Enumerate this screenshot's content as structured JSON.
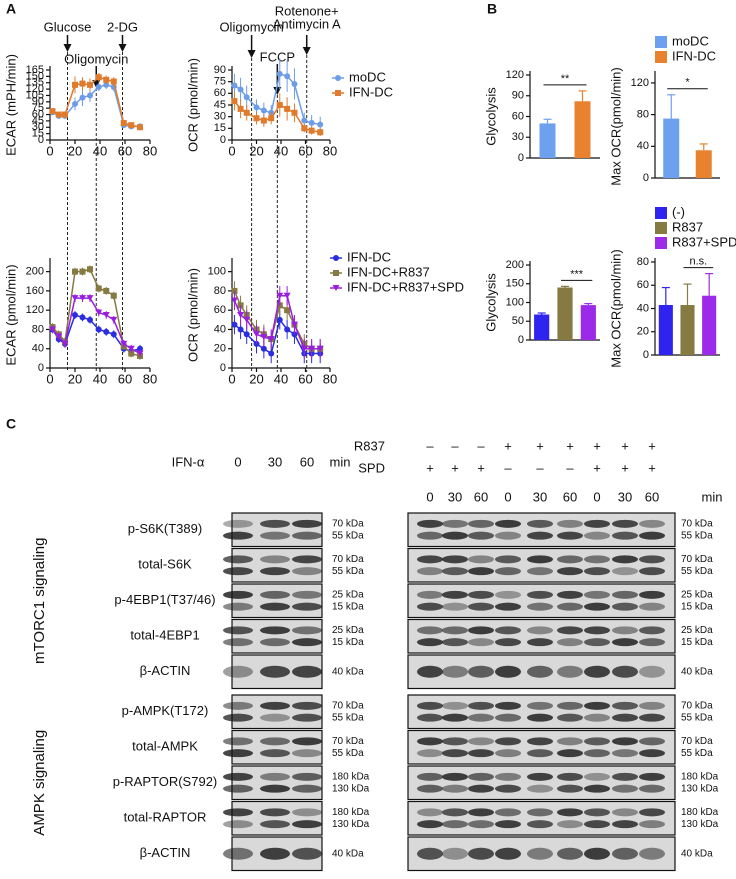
{
  "panel_labels": [
    "A",
    "B",
    "C"
  ],
  "chart_data": [
    {
      "type": "line",
      "ylabel": "ECAR (mPH/min)",
      "xlim": [
        0,
        80
      ],
      "xticks": [
        0,
        20,
        40,
        60,
        80
      ],
      "ylim": [
        0,
        165
      ],
      "yticks": [
        0,
        15,
        30,
        45,
        60,
        75,
        90,
        105,
        120,
        135,
        150,
        165
      ],
      "x": [
        2,
        7,
        12,
        20,
        26,
        32,
        39,
        45,
        51,
        59,
        65,
        72
      ],
      "events": [
        {
          "label": [
            "Glucose"
          ],
          "x": 14
        },
        {
          "label": [
            "Oligomycin"
          ],
          "x": 37
        },
        {
          "label": [
            "2-DG"
          ],
          "x": 58
        }
      ],
      "series": [
        {
          "name": "moDC",
          "color": "#6e9de8",
          "marker": "circle",
          "values": [
            65,
            57,
            57,
            85,
            100,
            105,
            125,
            130,
            125,
            35,
            32,
            32
          ],
          "errors": [
            5,
            5,
            5,
            15,
            20,
            15,
            10,
            10,
            10,
            5,
            5,
            5
          ]
        },
        {
          "name": "IFN-DC",
          "color": "#e07a2c",
          "marker": "square",
          "values": [
            68,
            60,
            60,
            130,
            133,
            130,
            148,
            142,
            138,
            40,
            35,
            30
          ],
          "errors": [
            5,
            5,
            5,
            20,
            15,
            15,
            10,
            10,
            10,
            5,
            5,
            5
          ]
        }
      ]
    },
    {
      "type": "line",
      "ylabel": "OCR (pmol/min)",
      "xlim": [
        0,
        80
      ],
      "xticks": [
        0,
        20,
        40,
        60,
        80
      ],
      "ylim": [
        0,
        90
      ],
      "yticks": [
        0,
        15,
        30,
        45,
        60,
        75,
        90
      ],
      "legend": "upper right",
      "x": [
        2,
        7,
        12,
        20,
        26,
        32,
        39,
        45,
        51,
        59,
        65,
        72
      ],
      "events": [
        {
          "label": [
            "Oligomycin"
          ],
          "x": 16
        },
        {
          "label": [
            "FCCP"
          ],
          "x": 37
        },
        {
          "label": [
            "Rotenone+",
            "Antimycin A"
          ],
          "x": 61
        }
      ],
      "series": [
        {
          "name": "moDC",
          "color": "#6e9de8",
          "marker": "circle",
          "values": [
            70,
            65,
            55,
            42,
            38,
            35,
            85,
            82,
            72,
            25,
            22,
            20
          ],
          "errors": [
            15,
            15,
            15,
            10,
            10,
            10,
            20,
            20,
            20,
            10,
            10,
            10
          ]
        },
        {
          "name": "IFN-DC",
          "color": "#e07a2c",
          "marker": "square",
          "values": [
            50,
            40,
            35,
            28,
            25,
            28,
            45,
            40,
            35,
            15,
            12,
            10
          ],
          "errors": [
            12,
            12,
            10,
            8,
            8,
            8,
            15,
            15,
            12,
            5,
            5,
            5
          ]
        }
      ]
    },
    {
      "type": "line",
      "ylabel": "ECAR (pmol/min)",
      "xlim": [
        0,
        80
      ],
      "xticks": [
        0,
        20,
        40,
        60,
        80
      ],
      "ylim": [
        0,
        220
      ],
      "yticks": [
        0,
        40,
        80,
        120,
        160,
        200
      ],
      "x": [
        2,
        7,
        12,
        20,
        26,
        32,
        39,
        45,
        51,
        59,
        65,
        72
      ],
      "series": [
        {
          "name": "IFN-DC",
          "color": "#2a2ee0",
          "marker": "circle",
          "values": [
            80,
            60,
            50,
            110,
            105,
            100,
            80,
            75,
            70,
            40,
            35,
            40
          ],
          "errors": [
            8,
            8,
            8,
            8,
            8,
            8,
            8,
            8,
            8,
            8,
            8,
            8
          ]
        },
        {
          "name": "IFN-DC+R837",
          "color": "#857a42",
          "marker": "square",
          "values": [
            85,
            70,
            55,
            200,
            200,
            205,
            165,
            160,
            150,
            45,
            30,
            25
          ],
          "errors": [
            8,
            8,
            8,
            8,
            8,
            8,
            8,
            8,
            8,
            8,
            8,
            8
          ]
        },
        {
          "name": "IFN-DC+R837+SPD",
          "color": "#9a1ee0",
          "marker": "triangle",
          "values": [
            80,
            65,
            50,
            145,
            145,
            145,
            115,
            110,
            100,
            50,
            40,
            30
          ],
          "errors": [
            8,
            8,
            8,
            8,
            8,
            8,
            8,
            8,
            8,
            8,
            8,
            8
          ]
        }
      ]
    },
    {
      "type": "line",
      "ylabel": "OCR (pmol/min)",
      "xlim": [
        0,
        80
      ],
      "xticks": [
        0,
        20,
        40,
        60,
        80
      ],
      "ylim": [
        0,
        110
      ],
      "yticks": [
        0,
        20,
        40,
        60,
        80,
        100
      ],
      "legend": "upper right",
      "x": [
        2,
        7,
        12,
        20,
        26,
        32,
        39,
        45,
        51,
        59,
        65,
        72
      ],
      "series": [
        {
          "name": "IFN-DC",
          "color": "#2a2ee0",
          "marker": "circle",
          "values": [
            45,
            40,
            35,
            25,
            20,
            15,
            50,
            40,
            35,
            15,
            15,
            15
          ],
          "errors": [
            10,
            10,
            10,
            10,
            10,
            10,
            10,
            10,
            10,
            10,
            10,
            10
          ]
        },
        {
          "name": "IFN-DC+R837",
          "color": "#857a42",
          "marker": "square",
          "values": [
            80,
            65,
            55,
            40,
            35,
            30,
            65,
            60,
            45,
            25,
            20,
            20
          ],
          "errors": [
            10,
            10,
            10,
            10,
            10,
            10,
            10,
            10,
            10,
            10,
            10,
            10
          ]
        },
        {
          "name": "IFN-DC+R837+SPD",
          "color": "#9a1ee0",
          "marker": "triangle",
          "values": [
            70,
            55,
            50,
            35,
            32,
            30,
            75,
            75,
            45,
            20,
            20,
            20
          ],
          "errors": [
            10,
            10,
            10,
            10,
            10,
            10,
            10,
            10,
            10,
            10,
            10,
            10
          ]
        }
      ]
    },
    {
      "type": "bar",
      "ylabel": "Glycolysis",
      "ylim": [
        0,
        120
      ],
      "yticks": [
        0,
        30,
        60,
        90,
        120
      ],
      "significance": "**",
      "series": [
        {
          "name": "moDC",
          "color": "#6ea0f0",
          "values": [
            50
          ],
          "errors": [
            6
          ]
        },
        {
          "name": "IFN-DC",
          "color": "#e8822e",
          "values": [
            82
          ],
          "errors": [
            15
          ]
        }
      ]
    },
    {
      "type": "bar",
      "ylabel": "Max OCR(pmol/min)",
      "ylim": [
        0,
        130
      ],
      "yticks": [
        0,
        40,
        80,
        120
      ],
      "significance": "*",
      "legend": "above",
      "series": [
        {
          "name": "moDC",
          "color": "#6ea0f0",
          "values": [
            75
          ],
          "errors": [
            30
          ]
        },
        {
          "name": "IFN-DC",
          "color": "#e8822e",
          "values": [
            35
          ],
          "errors": [
            8
          ]
        }
      ]
    },
    {
      "type": "bar",
      "ylabel": "Glycolysis",
      "ylim": [
        0,
        200
      ],
      "yticks": [
        0,
        50,
        100,
        150,
        200
      ],
      "significance": "***",
      "series": [
        {
          "name": "(-)",
          "color": "#2f23f0",
          "values": [
            68
          ],
          "errors": [
            4
          ]
        },
        {
          "name": "R837",
          "color": "#857a42",
          "values": [
            140
          ],
          "errors": [
            3
          ]
        },
        {
          "name": "R837+SPD",
          "color": "#9b2be8",
          "values": [
            93
          ],
          "errors": [
            4
          ]
        }
      ]
    },
    {
      "type": "bar",
      "ylabel": "Max OCR(pmol/min)",
      "ylim": [
        0,
        80
      ],
      "yticks": [
        0,
        20,
        40,
        60,
        80
      ],
      "significance": "n.s.",
      "legend": "above",
      "series": [
        {
          "name": "(-)",
          "color": "#2f23f0",
          "values": [
            43
          ],
          "errors": [
            15
          ]
        },
        {
          "name": "R837",
          "color": "#857a42",
          "values": [
            43
          ],
          "errors": [
            18
          ]
        },
        {
          "name": "R837+SPD",
          "color": "#9b2be8",
          "values": [
            51
          ],
          "errors": [
            19
          ]
        }
      ]
    }
  ],
  "blots": {
    "ifn_label": "IFN-α",
    "left_times": [
      "0",
      "30",
      "60"
    ],
    "min": "min",
    "r837_label": "R837",
    "spd_label": "SPD",
    "r837": [
      "–",
      "–",
      "–",
      "+",
      "+",
      "+",
      "+",
      "+",
      "+"
    ],
    "spd": [
      "+",
      "+",
      "+",
      "–",
      "–",
      "–",
      "+",
      "+",
      "+"
    ],
    "right_times": [
      "0",
      "30",
      "60",
      "0",
      "30",
      "60",
      "0",
      "30",
      "60"
    ],
    "sections": [
      {
        "name": "mTORC1 signaling",
        "rows": [
          {
            "label": "p-S6K(T389)",
            "markers": [
              "70 kDa",
              "55 kDa"
            ]
          },
          {
            "label": "total-S6K",
            "markers": [
              "70 kDa",
              "55 kDa"
            ]
          },
          {
            "label": "p-4EBP1(T37/46)",
            "markers": [
              "25 kDa",
              "15 kDa"
            ]
          },
          {
            "label": "total-4EBP1",
            "markers": [
              "25 kDa",
              "15 kDa"
            ]
          },
          {
            "label": "β-ACTIN",
            "markers": [
              "40 kDa"
            ]
          }
        ]
      },
      {
        "name": "AMPK signaling",
        "rows": [
          {
            "label": "p-AMPK(T172)",
            "markers": [
              "70 kDa",
              "55 kDa"
            ]
          },
          {
            "label": "total-AMPK",
            "markers": [
              "70 kDa",
              "55 kDa"
            ]
          },
          {
            "label": "p-RAPTOR(S792)",
            "markers": [
              "180 kDa",
              "130 kDa"
            ]
          },
          {
            "label": "total-RAPTOR",
            "markers": [
              "180 kDa",
              "130 kDa"
            ]
          },
          {
            "label": "β-ACTIN",
            "markers": [
              "40 kDa"
            ]
          }
        ]
      }
    ]
  }
}
